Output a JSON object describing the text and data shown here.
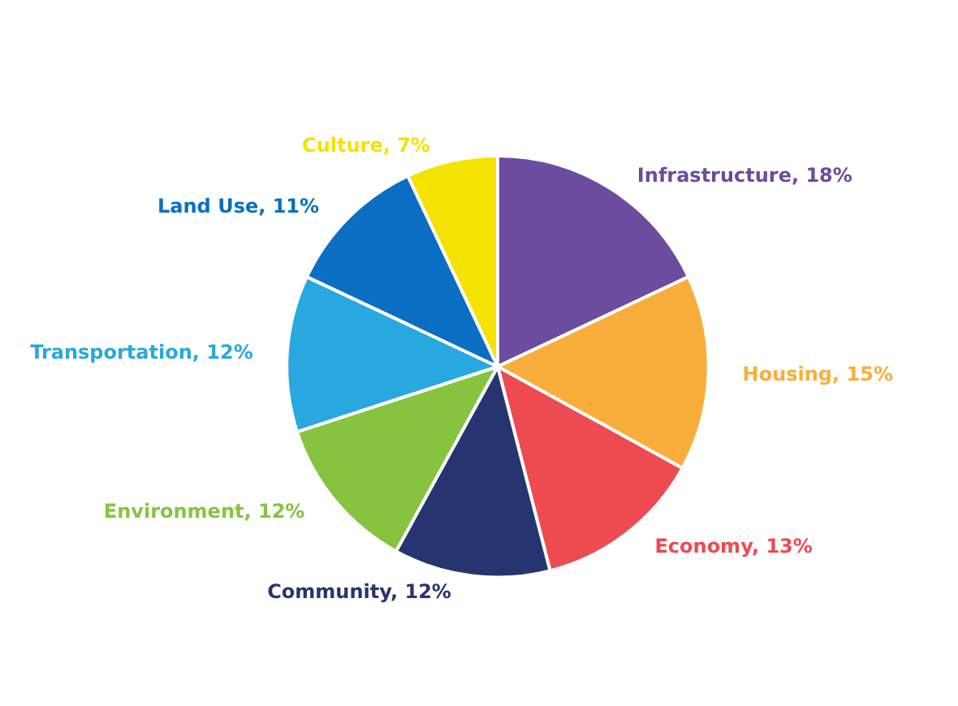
{
  "chart_data": {
    "type": "pie",
    "categories": [
      "Infrastructure",
      "Housing",
      "Economy",
      "Community",
      "Environment",
      "Transportation",
      "Land Use",
      "Culture"
    ],
    "values": [
      18,
      15,
      13,
      12,
      12,
      12,
      11,
      7
    ],
    "value_labels": [
      "18%",
      "15%",
      "13%",
      "12%",
      "12%",
      "12%",
      "11%",
      "7%"
    ],
    "colors": [
      "#6b4c9e",
      "#f9ae3b",
      "#ee4a52",
      "#263570",
      "#86c440",
      "#29a8e0",
      "#0a6fc2",
      "#f4e200"
    ],
    "legend": false
  }
}
